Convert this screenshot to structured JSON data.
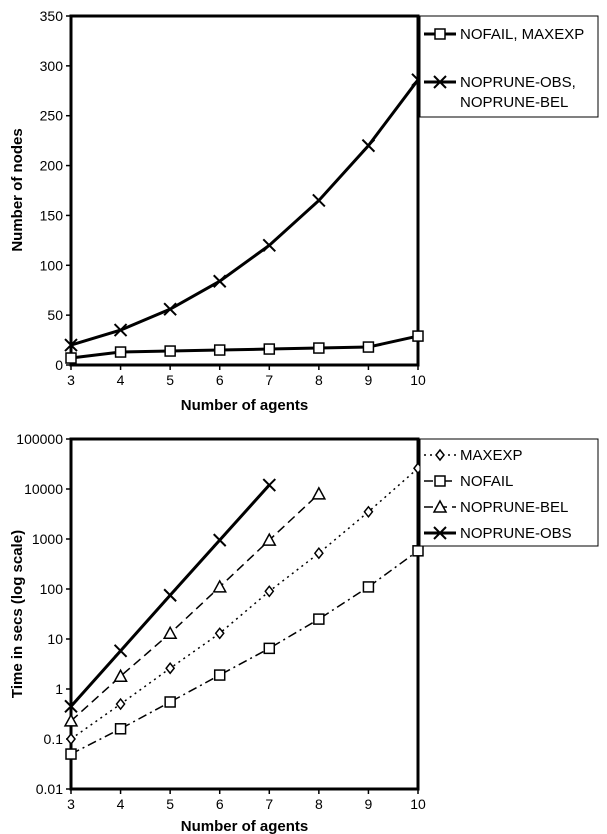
{
  "chart_data": [
    {
      "type": "line",
      "title": "",
      "xlabel": "Number of agents",
      "ylabel": "Number of nodes",
      "x": [
        3,
        4,
        5,
        6,
        7,
        8,
        9,
        10
      ],
      "xticks": [
        "3",
        "4",
        "5",
        "6",
        "7",
        "8",
        "9",
        "10"
      ],
      "xlim": [
        3,
        10
      ],
      "ylim": [
        0,
        350
      ],
      "yticks": [
        "0",
        "50",
        "100",
        "150",
        "200",
        "250",
        "300",
        "350"
      ],
      "yscale": "linear",
      "grid": false,
      "legend_position": "right",
      "series": [
        {
          "name": "NOFAIL, MAXEXP",
          "marker": "square",
          "dash": "solid",
          "color": "#000000",
          "values": [
            7,
            13,
            14,
            15,
            16,
            17,
            18,
            29
          ]
        },
        {
          "name": "NOPRUNE-OBS, NOPRUNE-BEL",
          "marker": "x",
          "dash": "solid",
          "color": "#000000",
          "values": [
            20,
            35,
            56,
            84,
            120,
            165,
            220,
            286
          ]
        }
      ]
    },
    {
      "type": "line",
      "title": "",
      "xlabel": "Number of agents",
      "ylabel": "Time in secs (log scale)",
      "x": [
        3,
        4,
        5,
        6,
        7,
        8,
        9,
        10
      ],
      "xticks": [
        "3",
        "4",
        "5",
        "6",
        "7",
        "8",
        "9",
        "10"
      ],
      "xlim": [
        3,
        10
      ],
      "ylim": [
        0.01,
        100000
      ],
      "yticks": [
        "0.01",
        "0.1",
        "1",
        "10",
        "100",
        "1000",
        "10000",
        "100000"
      ],
      "yscale": "log",
      "grid": false,
      "legend_position": "right",
      "series": [
        {
          "name": "MAXEXP",
          "marker": "diamond",
          "dash": "dotted",
          "color": "#000000",
          "values": [
            0.1,
            0.5,
            2.6,
            13,
            90,
            520,
            3500,
            26000
          ]
        },
        {
          "name": "NOFAIL",
          "marker": "square",
          "dash": "dashdot",
          "color": "#000000",
          "values": [
            0.05,
            0.16,
            0.55,
            1.9,
            6.5,
            25,
            110,
            580
          ]
        },
        {
          "name": "NOPRUNE-BEL",
          "marker": "triangle",
          "dash": "dashed",
          "color": "#000000",
          "values": [
            0.23,
            1.8,
            13,
            110,
            950,
            8000,
            null,
            null
          ]
        },
        {
          "name": "NOPRUNE-OBS",
          "marker": "x",
          "dash": "solid",
          "color": "#000000",
          "values": [
            0.45,
            5.8,
            75,
            950,
            12000,
            null,
            null,
            null
          ]
        }
      ]
    }
  ]
}
